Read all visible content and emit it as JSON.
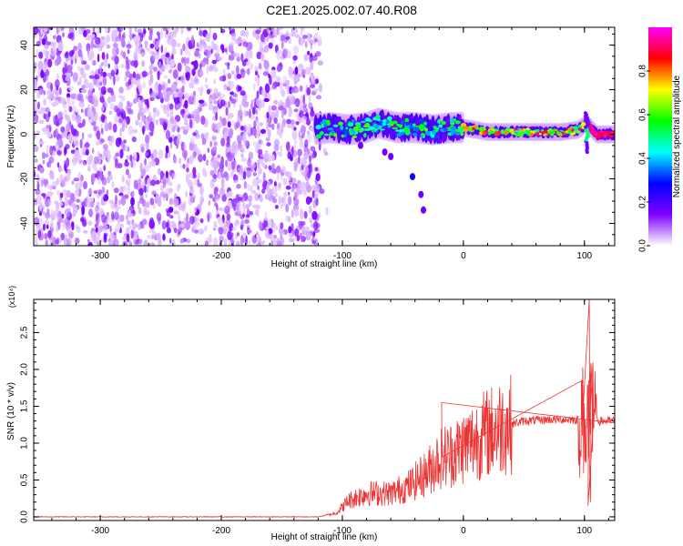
{
  "title": "C2E1.2025.002.07.40.R08",
  "chart_data": [
    {
      "type": "heatmap",
      "ylabel": "Frequency (Hz)",
      "xlabel": "Height of straight line (km)",
      "xlim": [
        -355,
        125
      ],
      "ylim": [
        -50,
        48
      ],
      "xticks": [
        -300,
        -200,
        -100,
        0,
        100
      ],
      "yticks": [
        -40,
        -20,
        0,
        20,
        40
      ],
      "xtick_labels": [
        "-300",
        "-200",
        "-100",
        "0",
        "100"
      ],
      "ytick_labels": [
        "-40",
        "-20",
        "0",
        "20",
        "40"
      ],
      "colorbar": {
        "label": "Normalized spectral amplitude",
        "range": [
          0,
          1
        ],
        "ticks": [
          0,
          0.2,
          0.4,
          0.6,
          0.8
        ],
        "tick_labels": [
          "0.0",
          "0.2",
          "0.4",
          "0.6",
          "0.8"
        ],
        "colormap": [
          "#ffffff",
          "#7f00ff",
          "#0000ff",
          "#00ffff",
          "#00ff00",
          "#ffff00",
          "#ff0000",
          "#ff00ff"
        ]
      },
      "noise_region_x": [
        -355,
        -118
      ],
      "ridge": [
        {
          "x": -125,
          "y": 2
        },
        {
          "x": -110,
          "y": 3
        },
        {
          "x": -95,
          "y": 2
        },
        {
          "x": -80,
          "y": 3
        },
        {
          "x": -70,
          "y": 5
        },
        {
          "x": -55,
          "y": 3
        },
        {
          "x": -40,
          "y": 3
        },
        {
          "x": -25,
          "y": 2
        },
        {
          "x": -10,
          "y": 3
        },
        {
          "x": 0,
          "y": 3
        },
        {
          "x": 20,
          "y": 1
        },
        {
          "x": 40,
          "y": 1
        },
        {
          "x": 60,
          "y": 1
        },
        {
          "x": 80,
          "y": 1
        },
        {
          "x": 95,
          "y": 2
        },
        {
          "x": 102,
          "y": 5
        },
        {
          "x": 110,
          "y": 0
        },
        {
          "x": 125,
          "y": 0
        }
      ],
      "tail_points": [
        {
          "x": -85,
          "y": -5
        },
        {
          "x": -65,
          "y": -8
        },
        {
          "x": -60,
          "y": -10
        },
        {
          "x": -42,
          "y": -19
        },
        {
          "x": -35,
          "y": -27
        },
        {
          "x": -33,
          "y": -34
        }
      ]
    },
    {
      "type": "line",
      "ylabel": "SNR (10 * v/v)",
      "xlabel": "Height of straight line (km)",
      "y_multiplier": "(x10⁴)",
      "xlim": [
        -355,
        125
      ],
      "ylim": [
        -0.05,
        2.95
      ],
      "xticks": [
        -300,
        -200,
        -100,
        0,
        100
      ],
      "yticks": [
        0,
        0.5,
        1,
        1.5,
        2,
        2.5
      ],
      "xtick_labels": [
        "-300",
        "-200",
        "-100",
        "0",
        "100"
      ],
      "ytick_labels": [
        "0.0",
        "0.5",
        "1.0",
        "1.5",
        "2.0",
        "2.5"
      ],
      "color": "#ee3333",
      "envelope": [
        {
          "x": -355,
          "y": 0.0
        },
        {
          "x": -120,
          "y": 0.0
        },
        {
          "x": -105,
          "y": 0.05
        },
        {
          "x": -95,
          "y": 0.22
        },
        {
          "x": -80,
          "y": 0.32
        },
        {
          "x": -60,
          "y": 0.32
        },
        {
          "x": -45,
          "y": 0.42
        },
        {
          "x": -30,
          "y": 0.6
        },
        {
          "x": -20,
          "y": 0.8
        },
        {
          "x": -10,
          "y": 0.85
        },
        {
          "x": 0,
          "y": 0.95
        },
        {
          "x": 15,
          "y": 1.1
        },
        {
          "x": 30,
          "y": 1.22
        },
        {
          "x": 50,
          "y": 1.3
        },
        {
          "x": 70,
          "y": 1.32
        },
        {
          "x": 90,
          "y": 1.32
        },
        {
          "x": 100,
          "y": 1.3
        },
        {
          "x": 108,
          "y": 1.3
        },
        {
          "x": 125,
          "y": 1.3
        }
      ],
      "spikes": [
        {
          "x": -18,
          "y": 1.55
        },
        {
          "x": 98,
          "y": 1.85
        },
        {
          "x": 104,
          "y": 2.95
        },
        {
          "x": 107,
          "y": 2.1
        },
        {
          "x": 103,
          "y": 0.15
        },
        {
          "x": 105,
          "y": 0.2
        }
      ]
    }
  ]
}
